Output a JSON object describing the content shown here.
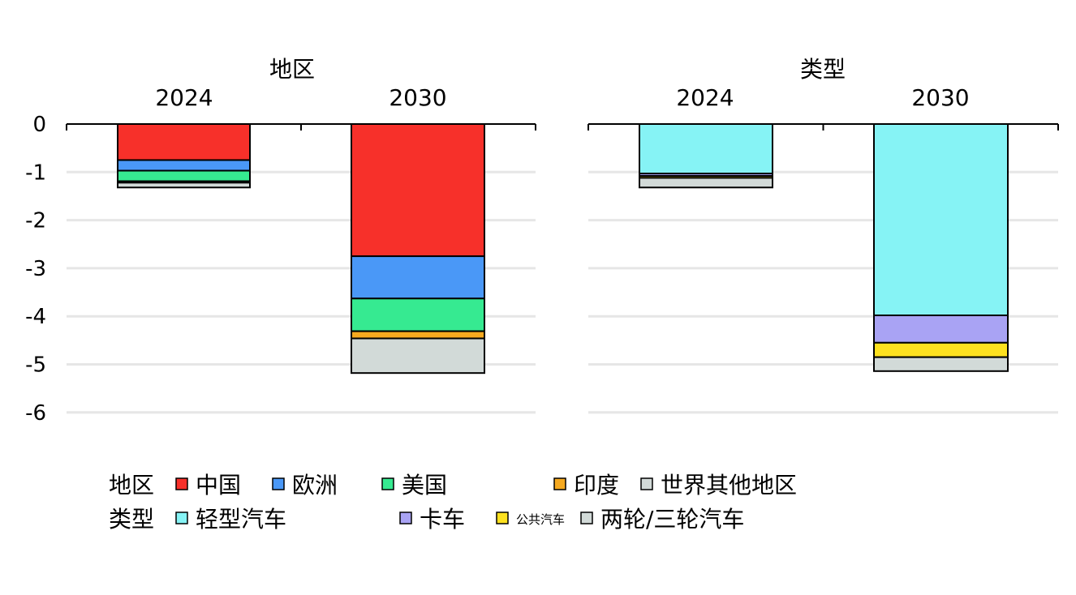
{
  "chart_data": [
    {
      "type": "bar",
      "stacked": true,
      "title": "地区",
      "categories": [
        "2024",
        "2030"
      ],
      "ylim": [
        -6,
        0
      ],
      "yticks": [
        0,
        -1,
        -2,
        -3,
        -4,
        -5,
        -6
      ],
      "grid": true,
      "series": [
        {
          "name": "中国",
          "color": "#f7302a",
          "values": [
            -0.75,
            -2.75
          ]
        },
        {
          "name": "欧洲",
          "color": "#4a98f7",
          "values": [
            -0.22,
            -0.88
          ]
        },
        {
          "name": "美国",
          "color": "#36ea91",
          "values": [
            -0.22,
            -0.68
          ]
        },
        {
          "name": "印度",
          "color": "#f6a91f",
          "values": [
            -0.03,
            -0.15
          ]
        },
        {
          "name": "世界其他地区",
          "color": "#d2dad8",
          "values": [
            -0.1,
            -0.72
          ]
        }
      ]
    },
    {
      "type": "bar",
      "stacked": true,
      "title": "类型",
      "categories": [
        "2024",
        "2030"
      ],
      "ylim": [
        -6,
        0
      ],
      "yticks": [
        0,
        -1,
        -2,
        -3,
        -4,
        -5,
        -6
      ],
      "grid": true,
      "series": [
        {
          "name": "轻型汽车",
          "color": "#86f3f5",
          "values": [
            -1.03,
            -3.98
          ]
        },
        {
          "name": "卡车",
          "color": "#a9a3f4",
          "values": [
            -0.05,
            -0.57
          ]
        },
        {
          "name": "公共汽车",
          "color": "#fde11f",
          "values": [
            -0.04,
            -0.3
          ]
        },
        {
          "name": "两轮/三轮汽车",
          "color": "#d2dad8",
          "values": [
            -0.2,
            -0.29
          ]
        }
      ]
    }
  ],
  "legend": {
    "region_label": "地区",
    "type_label": "类型"
  }
}
